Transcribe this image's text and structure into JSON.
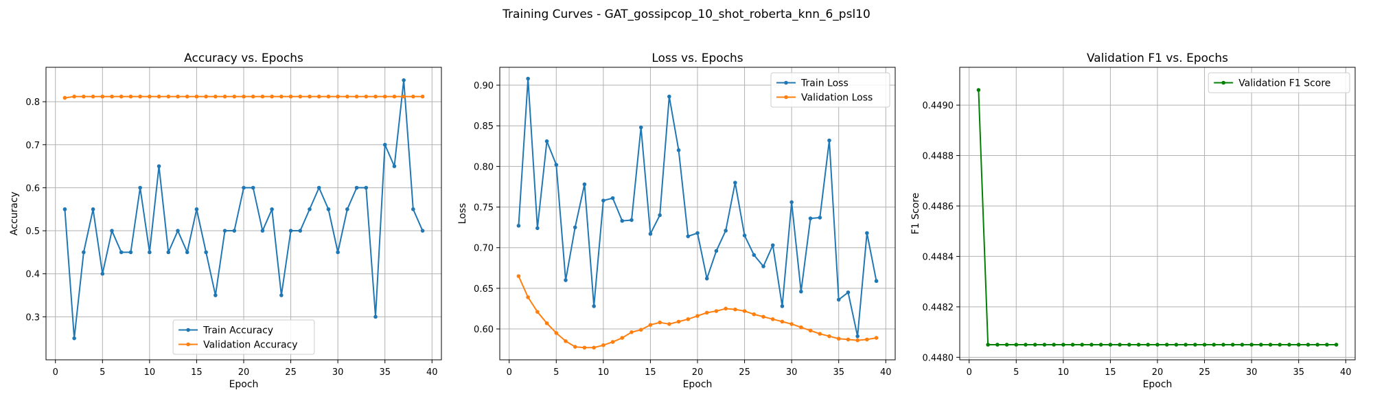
{
  "figure": {
    "suptitle": "Training Curves - GAT_gossipcop_10_shot_roberta_knn_6_psl10"
  },
  "colors": {
    "blue": "#1f77b4",
    "orange": "#ff7f0e",
    "green": "#008000",
    "grid": "#b0b0b0"
  },
  "chart_data": [
    {
      "type": "line",
      "title": "Accuracy vs. Epochs",
      "xlabel": "Epoch",
      "ylabel": "Accuracy",
      "xlim": [
        -1,
        41
      ],
      "ylim": [
        0.2,
        0.88
      ],
      "xticks": [
        0,
        5,
        10,
        15,
        20,
        25,
        30,
        35,
        40
      ],
      "yticks": [
        0.3,
        0.4,
        0.5,
        0.6,
        0.7,
        0.8
      ],
      "ytick_decimals": 1,
      "grid": true,
      "legend": "lower center",
      "x": [
        1,
        2,
        3,
        4,
        5,
        6,
        7,
        8,
        9,
        10,
        11,
        12,
        13,
        14,
        15,
        16,
        17,
        18,
        19,
        20,
        21,
        22,
        23,
        24,
        25,
        26,
        27,
        28,
        29,
        30,
        31,
        32,
        33,
        34,
        35,
        36,
        37,
        38,
        39
      ],
      "series": [
        {
          "name": "Train Accuracy",
          "color": "#1f77b4",
          "values": [
            0.55,
            0.25,
            0.45,
            0.55,
            0.4,
            0.5,
            0.45,
            0.45,
            0.6,
            0.45,
            0.65,
            0.45,
            0.5,
            0.45,
            0.55,
            0.45,
            0.35,
            0.5,
            0.5,
            0.6,
            0.6,
            0.5,
            0.55,
            0.35,
            0.5,
            0.5,
            0.55,
            0.6,
            0.55,
            0.45,
            0.55,
            0.6,
            0.6,
            0.3,
            0.7,
            0.65,
            0.85,
            0.55,
            0.5
          ]
        },
        {
          "name": "Validation Accuracy",
          "color": "#ff7f0e",
          "values": [
            0.809,
            0.812,
            0.812,
            0.812,
            0.812,
            0.812,
            0.812,
            0.812,
            0.812,
            0.812,
            0.812,
            0.812,
            0.812,
            0.812,
            0.812,
            0.812,
            0.812,
            0.812,
            0.812,
            0.812,
            0.812,
            0.812,
            0.812,
            0.812,
            0.812,
            0.812,
            0.812,
            0.812,
            0.812,
            0.812,
            0.812,
            0.812,
            0.812,
            0.812,
            0.812,
            0.812,
            0.812,
            0.812,
            0.812
          ]
        }
      ]
    },
    {
      "type": "line",
      "title": "Loss vs. Epochs",
      "xlabel": "Epoch",
      "ylabel": "Loss",
      "xlim": [
        -1,
        41
      ],
      "ylim": [
        0.562,
        0.922
      ],
      "xticks": [
        0,
        5,
        10,
        15,
        20,
        25,
        30,
        35,
        40
      ],
      "yticks": [
        0.6,
        0.65,
        0.7,
        0.75,
        0.8,
        0.85,
        0.9
      ],
      "ytick_decimals": 2,
      "grid": true,
      "legend": "upper right",
      "x": [
        1,
        2,
        3,
        4,
        5,
        6,
        7,
        8,
        9,
        10,
        11,
        12,
        13,
        14,
        15,
        16,
        17,
        18,
        19,
        20,
        21,
        22,
        23,
        24,
        25,
        26,
        27,
        28,
        29,
        30,
        31,
        32,
        33,
        34,
        35,
        36,
        37,
        38,
        39
      ],
      "series": [
        {
          "name": "Train Loss",
          "color": "#1f77b4",
          "values": [
            0.727,
            0.908,
            0.724,
            0.831,
            0.802,
            0.66,
            0.725,
            0.778,
            0.628,
            0.758,
            0.761,
            0.733,
            0.734,
            0.848,
            0.717,
            0.74,
            0.886,
            0.82,
            0.714,
            0.718,
            0.662,
            0.696,
            0.721,
            0.78,
            0.715,
            0.691,
            0.677,
            0.703,
            0.628,
            0.756,
            0.646,
            0.736,
            0.737,
            0.832,
            0.636,
            0.645,
            0.591,
            0.718,
            0.659
          ]
        },
        {
          "name": "Validation Loss",
          "color": "#ff7f0e",
          "values": [
            0.665,
            0.639,
            0.621,
            0.607,
            0.595,
            0.585,
            0.578,
            0.577,
            0.577,
            0.58,
            0.584,
            0.589,
            0.596,
            0.599,
            0.605,
            0.608,
            0.606,
            0.609,
            0.612,
            0.616,
            0.62,
            0.622,
            0.625,
            0.624,
            0.622,
            0.618,
            0.615,
            0.612,
            0.609,
            0.606,
            0.602,
            0.598,
            0.594,
            0.591,
            0.588,
            0.587,
            0.586,
            0.587,
            0.589
          ]
        }
      ]
    },
    {
      "type": "line",
      "title": "Validation F1 vs. Epochs",
      "xlabel": "Epoch",
      "ylabel": "F1 Score",
      "xlim": [
        -1,
        41
      ],
      "ylim": [
        0.44799,
        0.44915
      ],
      "xticks": [
        0,
        5,
        10,
        15,
        20,
        25,
        30,
        35,
        40
      ],
      "yticks": [
        0.448,
        0.4482,
        0.4484,
        0.4486,
        0.4488,
        0.449
      ],
      "ytick_decimals": 4,
      "grid": true,
      "legend": "upper right",
      "x": [
        1,
        2,
        3,
        4,
        5,
        6,
        7,
        8,
        9,
        10,
        11,
        12,
        13,
        14,
        15,
        16,
        17,
        18,
        19,
        20,
        21,
        22,
        23,
        24,
        25,
        26,
        27,
        28,
        29,
        30,
        31,
        32,
        33,
        34,
        35,
        36,
        37,
        38,
        39
      ],
      "series": [
        {
          "name": "Validation F1 Score",
          "color": "#008000",
          "values": [
            0.44906,
            0.44805,
            0.44805,
            0.44805,
            0.44805,
            0.44805,
            0.44805,
            0.44805,
            0.44805,
            0.44805,
            0.44805,
            0.44805,
            0.44805,
            0.44805,
            0.44805,
            0.44805,
            0.44805,
            0.44805,
            0.44805,
            0.44805,
            0.44805,
            0.44805,
            0.44805,
            0.44805,
            0.44805,
            0.44805,
            0.44805,
            0.44805,
            0.44805,
            0.44805,
            0.44805,
            0.44805,
            0.44805,
            0.44805,
            0.44805,
            0.44805,
            0.44805,
            0.44805,
            0.44805
          ]
        }
      ]
    }
  ]
}
